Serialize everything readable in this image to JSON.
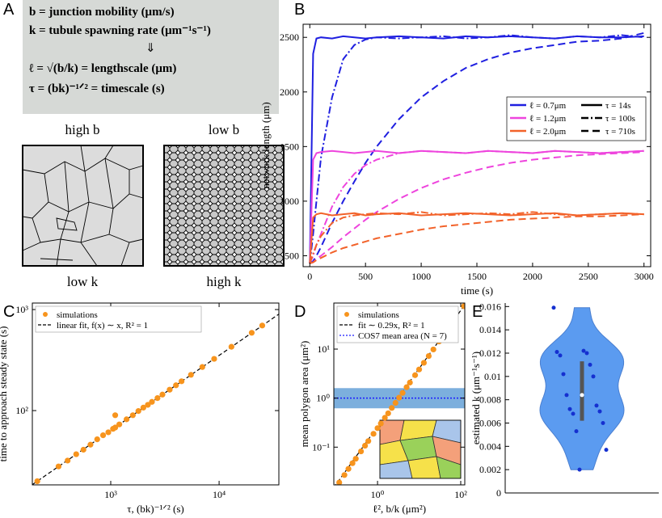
{
  "panel_labels": [
    "A",
    "B",
    "C",
    "D",
    "E"
  ],
  "diagram": {
    "definitions": [
      "b = junction mobility (μm/s)",
      "k = tubule spawning rate (μm⁻¹s⁻¹)",
      "⇓",
      "ℓ = √(b/k) = lengthscale (μm)",
      "τ = (bk)⁻¹ᐟ² = timescale (s)"
    ],
    "images": [
      {
        "top": "high b",
        "bottom": "low k"
      },
      {
        "top": "low b",
        "bottom": "high k"
      }
    ]
  },
  "chart_data": [
    {
      "type": "line",
      "xlabel": "time (s)",
      "ylabel": "network length (μm)",
      "x": [
        0,
        30,
        60,
        100,
        200,
        300,
        400,
        500,
        600,
        800,
        1000,
        1200,
        1400,
        1600,
        1800,
        2000,
        2200,
        2400,
        2600,
        2800,
        3000
      ],
      "xlim": [
        -60,
        3060
      ],
      "ylim": [
        400,
        2620
      ],
      "xticks": [
        0,
        500,
        1000,
        1500,
        2000,
        2500,
        3000
      ],
      "yticks": [
        500,
        1000,
        1500,
        2000,
        2500
      ],
      "series": [
        {
          "color": "#1f1fe0",
          "linestyle": "solid",
          "values": [
            430,
            2350,
            2490,
            2500,
            2490,
            2510,
            2500,
            2490,
            2500,
            2510,
            2500,
            2490,
            2510,
            2500,
            2510,
            2500,
            2490,
            2510,
            2500,
            2500,
            2510
          ]
        },
        {
          "color": "#1f1fe0",
          "linestyle": "dashdot",
          "values": [
            430,
            700,
            1000,
            1400,
            1950,
            2300,
            2430,
            2480,
            2500,
            2490,
            2500,
            2510,
            2490,
            2500,
            2520,
            2500,
            2490,
            2510,
            2500,
            2520,
            2500
          ]
        },
        {
          "color": "#1f1fe0",
          "linestyle": "dashed",
          "values": [
            430,
            450,
            500,
            580,
            800,
            1000,
            1180,
            1350,
            1500,
            1750,
            1950,
            2100,
            2220,
            2300,
            2360,
            2400,
            2430,
            2460,
            2470,
            2490,
            2540
          ]
        },
        {
          "color": "#ee44dd",
          "linestyle": "solid",
          "values": [
            430,
            1380,
            1440,
            1450,
            1460,
            1450,
            1440,
            1450,
            1460,
            1440,
            1460,
            1450,
            1440,
            1460,
            1450,
            1440,
            1460,
            1450,
            1440,
            1450,
            1460
          ]
        },
        {
          "color": "#ee44dd",
          "linestyle": "dashdot",
          "values": [
            430,
            500,
            600,
            700,
            950,
            1130,
            1250,
            1330,
            1380,
            1440,
            1460,
            1450,
            1440,
            1460,
            1450,
            1440,
            1460,
            1450,
            1440,
            1450,
            1460
          ]
        },
        {
          "color": "#ee44dd",
          "linestyle": "dashed",
          "values": [
            430,
            440,
            470,
            500,
            580,
            670,
            750,
            830,
            900,
            1020,
            1120,
            1200,
            1260,
            1310,
            1350,
            1380,
            1400,
            1420,
            1430,
            1440,
            1450
          ]
        },
        {
          "color": "#f2622a",
          "linestyle": "solid",
          "values": [
            430,
            850,
            880,
            890,
            870,
            880,
            890,
            870,
            880,
            890,
            870,
            880,
            890,
            880,
            870,
            880,
            890,
            870,
            880,
            890,
            880
          ]
        },
        {
          "color": "#f2622a",
          "linestyle": "dashdot",
          "values": [
            430,
            520,
            600,
            680,
            800,
            850,
            870,
            880,
            890,
            880,
            900,
            870,
            880,
            890,
            880,
            900,
            880,
            870,
            880,
            890,
            880
          ]
        },
        {
          "color": "#f2622a",
          "linestyle": "dashed",
          "values": [
            430,
            440,
            460,
            480,
            530,
            570,
            600,
            630,
            660,
            700,
            740,
            770,
            790,
            810,
            830,
            840,
            850,
            860,
            860,
            870,
            880
          ]
        }
      ],
      "legend": {
        "position": "center right",
        "colors": [
          {
            "label": "ℓ = 0.7μm",
            "color": "#1f1fe0"
          },
          {
            "label": "ℓ = 1.2μm",
            "color": "#ee44dd"
          },
          {
            "label": "ℓ = 2.0μm",
            "color": "#f2622a"
          }
        ],
        "styles": [
          {
            "label": "τ = 14s",
            "linestyle": "solid"
          },
          {
            "label": "τ = 100s",
            "linestyle": "dashdot"
          },
          {
            "label": "τ = 710s",
            "linestyle": "dashed"
          }
        ]
      }
    },
    {
      "type": "scatter",
      "xscale": "log",
      "yscale": "log",
      "xlabel": "τ, (bk)⁻¹ᐟ² (s)",
      "ylabel": "time to approach steady state (s)",
      "xlim": [
        189,
        35600
      ],
      "ylim": [
        18.4,
        1160
      ],
      "xticks": [
        {
          "value": 1000,
          "label": "10³"
        },
        {
          "value": 10000,
          "label": "10⁴"
        }
      ],
      "yticks": [
        {
          "value": 100,
          "label": "10²"
        },
        {
          "value": 1000,
          "label": "10³"
        }
      ],
      "legend": {
        "position": "upper left"
      },
      "series": [
        {
          "name": "simulations",
          "mark": "dot",
          "color": "#f7941d",
          "x": [
            210,
            330,
            400,
            480,
            560,
            650,
            750,
            850,
            950,
            1050,
            1100,
            1100,
            1200,
            1400,
            1600,
            1800,
            2000,
            2200,
            2400,
            2700,
            3000,
            3500,
            4000,
            4500,
            5500,
            7000,
            9000,
            13000,
            20000,
            25000
          ],
          "values": [
            20,
            28,
            32,
            37,
            41,
            46,
            52,
            57,
            61,
            66,
            68,
            90,
            73,
            82,
            90,
            99,
            107,
            114,
            122,
            133,
            144,
            161,
            178,
            195,
            226,
            270,
            325,
            428,
            589,
            695
          ]
        },
        {
          "name": "linear fit, f(x) ∼ x, R² = 1",
          "mark": "dashed",
          "color": "#000000",
          "x": [
            189,
            35600
          ],
          "values": [
            18.5,
            902
          ]
        }
      ]
    },
    {
      "type": "scatter",
      "xscale": "log",
      "yscale": "log",
      "xlabel": "ℓ², b/k (μm²)",
      "ylabel": "mean polygon area (μm²)",
      "xlim": [
        0.089,
        125
      ],
      "ylim": [
        0.017,
        87
      ],
      "xticks": [
        {
          "value": 1,
          "label": "10⁰"
        },
        {
          "value": 100,
          "label": "10²"
        }
      ],
      "yticks": [
        {
          "value": 0.1,
          "label": "10⁻¹"
        },
        {
          "value": 1,
          "label": "10⁰"
        },
        {
          "value": 10,
          "label": "10¹"
        }
      ],
      "legend": {
        "position": "upper left"
      },
      "series": [
        {
          "name": "simulations",
          "mark": "dot",
          "color": "#f7941d",
          "x": [
            0.12,
            0.16,
            0.2,
            0.25,
            0.3,
            0.4,
            0.5,
            0.6,
            0.8,
            1.0,
            1.2,
            1.5,
            1.8,
            2.2,
            2.7,
            3.3,
            4,
            5,
            6,
            8,
            10,
            13,
            17,
            22,
            30,
            40,
            55,
            70,
            120
          ],
          "values": [
            0.019,
            0.027,
            0.036,
            0.047,
            0.058,
            0.082,
            0.107,
            0.133,
            0.187,
            0.244,
            0.304,
            0.397,
            0.49,
            0.63,
            0.8,
            1.02,
            1.28,
            1.67,
            2.08,
            2.94,
            3.84,
            5.26,
            7.23,
            9.84,
            14.3,
            20.1,
            29.4,
            39.4,
            75
          ]
        },
        {
          "name": "fit ∼ 0.29x, R² = 1",
          "mark": "dashed",
          "color": "#000000",
          "x": [
            0.089,
            125
          ],
          "values": [
            0.015,
            80
          ]
        },
        {
          "name": "COS7 mean area (N = 7)",
          "mark": "dotted-band",
          "color": "#1a1aff",
          "band_color": "#5b9bd5",
          "value": 1.0,
          "band": [
            0.62,
            1.6
          ]
        }
      ]
    },
    {
      "type": "violin",
      "ylabel": "estimated k (μm⁻¹s⁻¹)",
      "ylim": [
        0,
        0.0163
      ],
      "yticks": [
        0,
        0.002,
        0.004,
        0.006,
        0.008,
        0.01,
        0.012,
        0.014,
        0.016
      ],
      "color": "#5b9bf0",
      "point_color": "#1530d0",
      "values": [
        0.0159,
        0.0122,
        0.0121,
        0.012,
        0.0118,
        0.011,
        0.0102,
        0.01,
        0.0084,
        0.0075,
        0.0072,
        0.007,
        0.0068,
        0.006,
        0.0053,
        0.0037,
        0.002
      ],
      "quartiles": [
        0.0062,
        0.0084,
        0.0113
      ]
    }
  ]
}
